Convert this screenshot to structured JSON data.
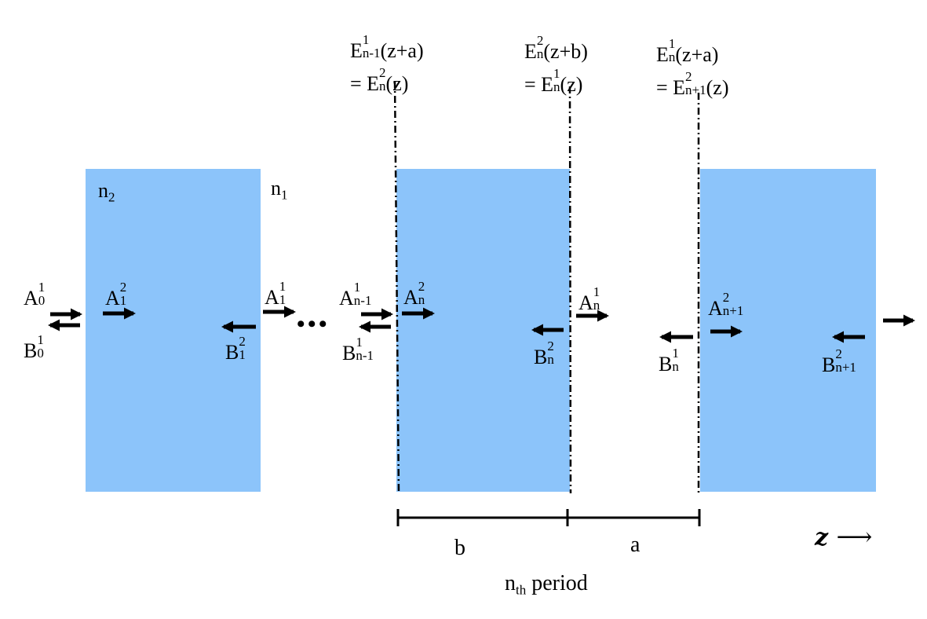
{
  "colors": {
    "layer_fill": "#8cc4fa",
    "line": "#000000",
    "background": "#ffffff"
  },
  "media": {
    "n2": {
      "main": "n",
      "sub": "2"
    },
    "n1": {
      "main": "n",
      "sub": "1"
    }
  },
  "boundaries": {
    "left": {
      "line1": {
        "main": "E",
        "sup": "1",
        "sub": "n-1",
        "tail": "(z+a)"
      },
      "line2": {
        "prefix": "= E",
        "sup": "2",
        "sub": "n",
        "tail": "(z)"
      }
    },
    "middle": {
      "line1": {
        "main": "E",
        "sup": "2",
        "sub": "n",
        "tail": "(z+b)"
      },
      "line2": {
        "prefix": "= E",
        "sup": "1",
        "sub": "n",
        "tail": "(z)"
      }
    },
    "right": {
      "line1": {
        "main": "E",
        "sup": "1",
        "sub": "n",
        "tail": "(z+a)"
      },
      "line2": {
        "prefix": "= E",
        "sup": "2",
        "sub": "n+1",
        "tail": "(z)"
      }
    }
  },
  "amplitudes": {
    "A1_0": {
      "main": "A",
      "sup": "1",
      "sub": "0"
    },
    "B1_0": {
      "main": "B",
      "sup": "1",
      "sub": "0"
    },
    "A2_1": {
      "main": "A",
      "sup": "2",
      "sub": "1"
    },
    "B2_1": {
      "main": "B",
      "sup": "2",
      "sub": "1"
    },
    "A1_1": {
      "main": "A",
      "sup": "1",
      "sub": "1"
    },
    "A1_n-1": {
      "main": "A",
      "sup": "1",
      "sub": "n-1"
    },
    "B1_n-1": {
      "main": "B",
      "sup": "1",
      "sub": "n-1"
    },
    "A2_n": {
      "main": "A",
      "sup": "2",
      "sub": "n"
    },
    "B2_n": {
      "main": "B",
      "sup": "2",
      "sub": "n"
    },
    "A1_n": {
      "main": "A",
      "sup": "1",
      "sub": "n"
    },
    "B1_n": {
      "main": "B",
      "sup": "1",
      "sub": "n"
    },
    "A2_n+1": {
      "main": "A",
      "sup": "2",
      "sub": "n+1"
    },
    "B2_n+1": {
      "main": "B",
      "sup": "2",
      "sub": "n+1"
    }
  },
  "ellipsis": "• • •",
  "dimensions": {
    "b": "b",
    "a": "a",
    "period": {
      "main": "n",
      "sub": "th",
      "tail": " period"
    }
  },
  "z_axis": {
    "label": "z",
    "arrow": "⟶"
  },
  "icons": {
    "forward": "arrow-right-icon",
    "backward": "arrow-left-icon"
  }
}
